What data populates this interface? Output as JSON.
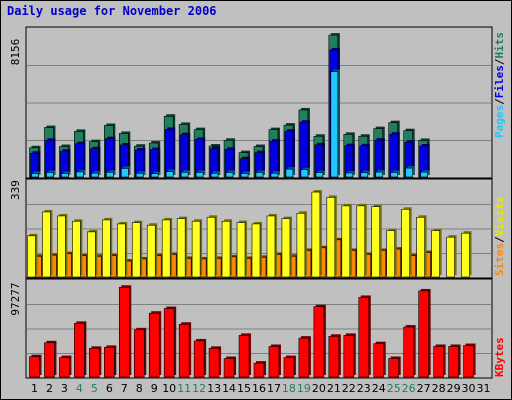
{
  "title": "Daily usage for November 2006",
  "colors": {
    "hits": "#1f7f5f",
    "files": "#0000e0",
    "pages": "#20c8ff",
    "visits": "#ffff20",
    "sites": "#ff8800",
    "kbytes": "#ff0000",
    "weekend_label": "#1f7f5f"
  },
  "chart_data": [
    {
      "type": "bar",
      "title": "",
      "ylabel_top": "8156",
      "ylim": [
        0,
        8156
      ],
      "grid": true,
      "legend_placement": "right-vertical",
      "categories": [
        "1",
        "2",
        "3",
        "4",
        "5",
        "6",
        "7",
        "8",
        "9",
        "10",
        "11",
        "12",
        "13",
        "14",
        "15",
        "16",
        "17",
        "18",
        "19",
        "20",
        "21",
        "22",
        "23",
        "24",
        "25",
        "26",
        "27",
        "28",
        "29",
        "30",
        "31"
      ],
      "series": [
        {
          "name": "Hits",
          "values": [
            1680,
            2840,
            1750,
            2620,
            2030,
            2960,
            2500,
            1770,
            1950,
            3490,
            3020,
            2720,
            1780,
            2110,
            1400,
            1750,
            2720,
            2980,
            3850,
            2340,
            8150,
            2450,
            2340,
            2780,
            3120,
            2660,
            2100,
            0,
            0,
            0,
            0
          ]
        },
        {
          "name": "Files",
          "values": [
            1360,
            2110,
            1480,
            1920,
            1620,
            2200,
            1840,
            1550,
            1580,
            2730,
            2430,
            2160,
            1640,
            1590,
            1050,
            1400,
            2060,
            2630,
            3150,
            1850,
            7300,
            1800,
            1790,
            2120,
            2460,
            2000,
            1780,
            0,
            0,
            0,
            0
          ]
        },
        {
          "name": "Pages",
          "values": [
            200,
            260,
            200,
            290,
            220,
            270,
            490,
            210,
            190,
            310,
            270,
            260,
            210,
            260,
            200,
            260,
            210,
            450,
            420,
            250,
            6050,
            230,
            250,
            280,
            260,
            510,
            280,
            0,
            0,
            0,
            0
          ]
        }
      ]
    },
    {
      "type": "bar",
      "title": "",
      "ylabel_top": "339",
      "ylim": [
        0,
        339
      ],
      "grid": true,
      "legend_placement": "right-vertical",
      "categories": [
        "1",
        "2",
        "3",
        "4",
        "5",
        "6",
        "7",
        "8",
        "9",
        "10",
        "11",
        "12",
        "13",
        "14",
        "15",
        "16",
        "17",
        "18",
        "19",
        "20",
        "21",
        "22",
        "23",
        "24",
        "25",
        "26",
        "27",
        "28",
        "29",
        "30",
        "31"
      ],
      "series": [
        {
          "name": "Visits",
          "values": [
            78,
            82,
            88,
            80,
            78,
            80,
            60,
            68,
            80,
            85,
            70,
            68,
            70,
            76,
            70,
            74,
            85,
            78,
            100,
            110,
            140,
            100,
            85,
            100,
            105,
            80,
            92,
            0,
            0,
            0,
            0
          ]
        },
        {
          "name": "Sites",
          "values": [
            155,
            245,
            230,
            210,
            170,
            215,
            200,
            205,
            195,
            215,
            220,
            210,
            225,
            210,
            205,
            200,
            230,
            220,
            240,
            320,
            300,
            268,
            268,
            265,
            175,
            255,
            225,
            175,
            150,
            165,
            0
          ]
        }
      ]
    },
    {
      "type": "bar",
      "title": "",
      "ylabel_top": "97277",
      "ylim": [
        0,
        97277
      ],
      "grid": true,
      "legend_placement": "right-vertical",
      "categories": [
        "1",
        "2",
        "3",
        "4",
        "5",
        "6",
        "7",
        "8",
        "9",
        "10",
        "11",
        "12",
        "13",
        "14",
        "15",
        "16",
        "17",
        "18",
        "19",
        "20",
        "21",
        "22",
        "23",
        "24",
        "25",
        "26",
        "27",
        "28",
        "29",
        "30",
        "31"
      ],
      "series": [
        {
          "name": "KBytes",
          "values": [
            22000,
            37000,
            21000,
            58000,
            31000,
            32000,
            97000,
            51000,
            69000,
            74000,
            57000,
            39000,
            31000,
            20000,
            45000,
            15000,
            33000,
            21000,
            42000,
            76000,
            44000,
            45000,
            86000,
            36000,
            20000,
            54000,
            93000,
            33000,
            33000,
            34000,
            0
          ]
        }
      ]
    }
  ],
  "legend": {
    "hits": "Hits",
    "files": "Files",
    "pages": "Pages",
    "sep1": "/",
    "sep2": "/",
    "visits": "Visits",
    "sites": "Sites",
    "sep3": "/",
    "kbytes": "KBytes"
  },
  "weekend_days": [
    "4",
    "5",
    "11",
    "12",
    "18",
    "19",
    "25",
    "26"
  ]
}
